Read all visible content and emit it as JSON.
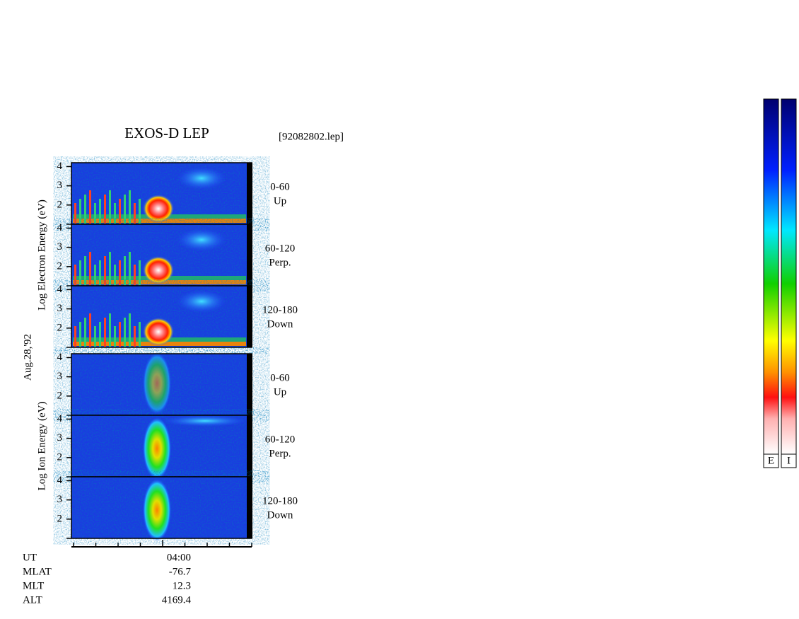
{
  "title": "EXOS-D LEP",
  "file": "[92082802.lep]",
  "date": "Aug.28,'92",
  "ylim": [
    1,
    4.2
  ],
  "yticks": [
    2,
    3,
    4
  ],
  "groups": [
    {
      "label": "Log Electron Energy (eV)",
      "panels": [
        {
          "range": "0-60",
          "direction": "Up"
        },
        {
          "range": "60-120",
          "direction": "Perp."
        },
        {
          "range": "120-180",
          "direction": "Down"
        }
      ]
    },
    {
      "label": "Log Ion Energy (eV)",
      "panels": [
        {
          "range": "0-60",
          "direction": "Up"
        },
        {
          "range": "60-120",
          "direction": "Perp."
        },
        {
          "range": "120-180",
          "direction": "Down"
        }
      ]
    }
  ],
  "info": [
    {
      "label": "UT",
      "value": "04:00"
    },
    {
      "label": "MLAT",
      "value": "-76.7"
    },
    {
      "label": "MLT",
      "value": "12.3"
    },
    {
      "label": "ALT",
      "value": "4169.4"
    }
  ],
  "colorbars": [
    "E",
    "I"
  ]
}
